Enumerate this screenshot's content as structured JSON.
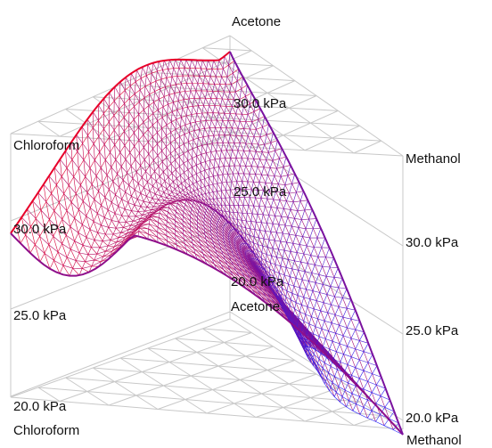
{
  "components": {
    "top": "Acetone",
    "left": "Chloroform",
    "right": "Methanol"
  },
  "pressure_labels": {
    "back": [
      "20.0 kPa",
      "25.0 kPa",
      "30.0 kPa"
    ],
    "left": [
      "20.0 kPa",
      "25.0 kPa",
      "30.0 kPa"
    ],
    "right": [
      "20.0 kPa",
      "25.0 kPa",
      "30.0 kPa"
    ]
  },
  "floor_labels": {
    "center": "Acetone",
    "left": "Chloroform",
    "right": "Methanol"
  },
  "colors": {
    "high_pressure": "#e8002a",
    "low_pressure": "#2020ff",
    "grid": "#c8c8c8"
  }
}
